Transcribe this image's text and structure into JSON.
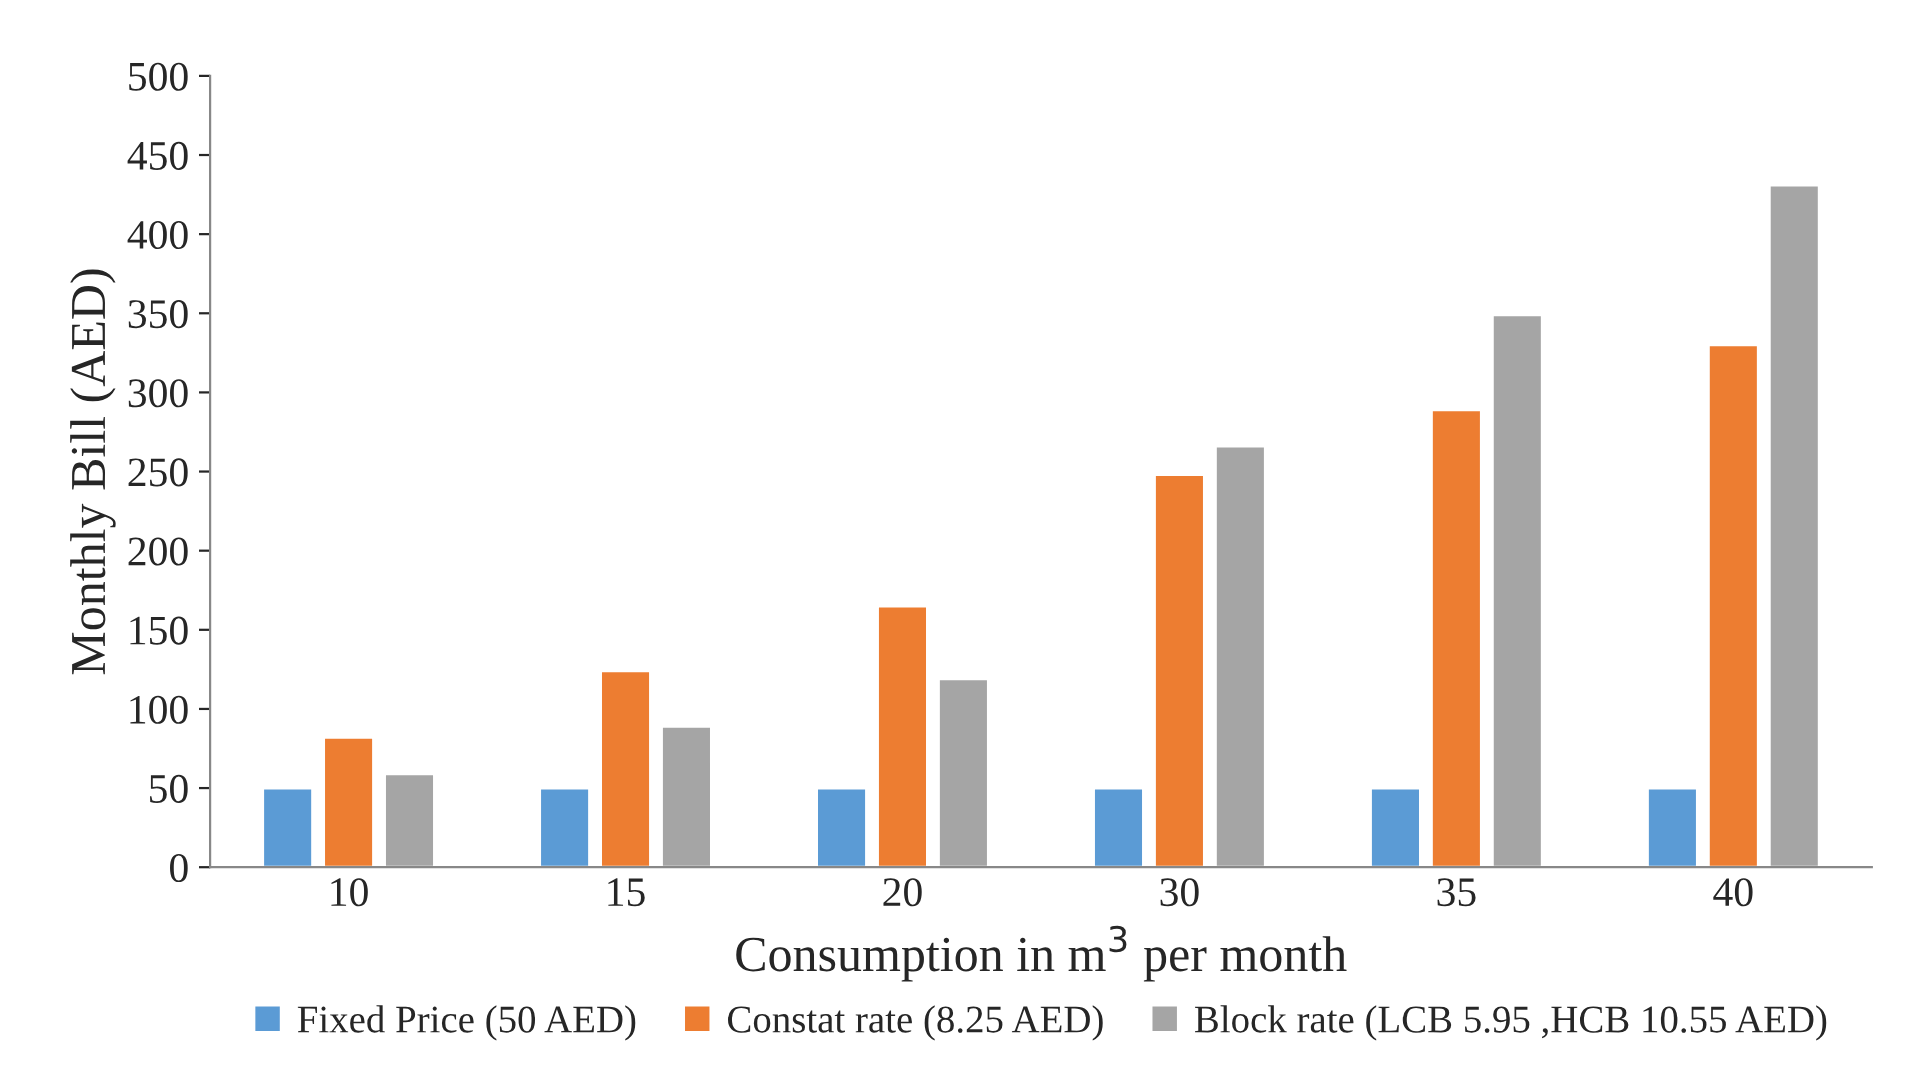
{
  "chart_data": {
    "type": "bar",
    "xlabel": "Consumption in m$^{3}$ per month",
    "ylabel": "Monthly Bill (AED)",
    "categories": [
      "10",
      "15",
      "20",
      "30",
      "35",
      "40"
    ],
    "series": [
      {
        "name": "Fixed Price (50 AED)",
        "color": "#5b9bd5",
        "values": [
          50,
          50,
          50,
          50,
          50,
          50
        ]
      },
      {
        "name": "Constat rate (8.25 AED)",
        "color": "#ed7d31",
        "values": [
          82,
          124,
          165,
          248,
          289,
          330
        ]
      },
      {
        "name": "Block rate (LCB 5.95 ,HCB 10.55 AED)",
        "color": "#a5a5a5",
        "values": [
          59,
          89,
          119,
          266,
          349,
          431
        ]
      }
    ],
    "ylim": [
      0,
      500
    ],
    "yticks": [
      0,
      50,
      100,
      150,
      200,
      250,
      300,
      350,
      400,
      450,
      500
    ],
    "grid": false,
    "legend": "bottom"
  }
}
